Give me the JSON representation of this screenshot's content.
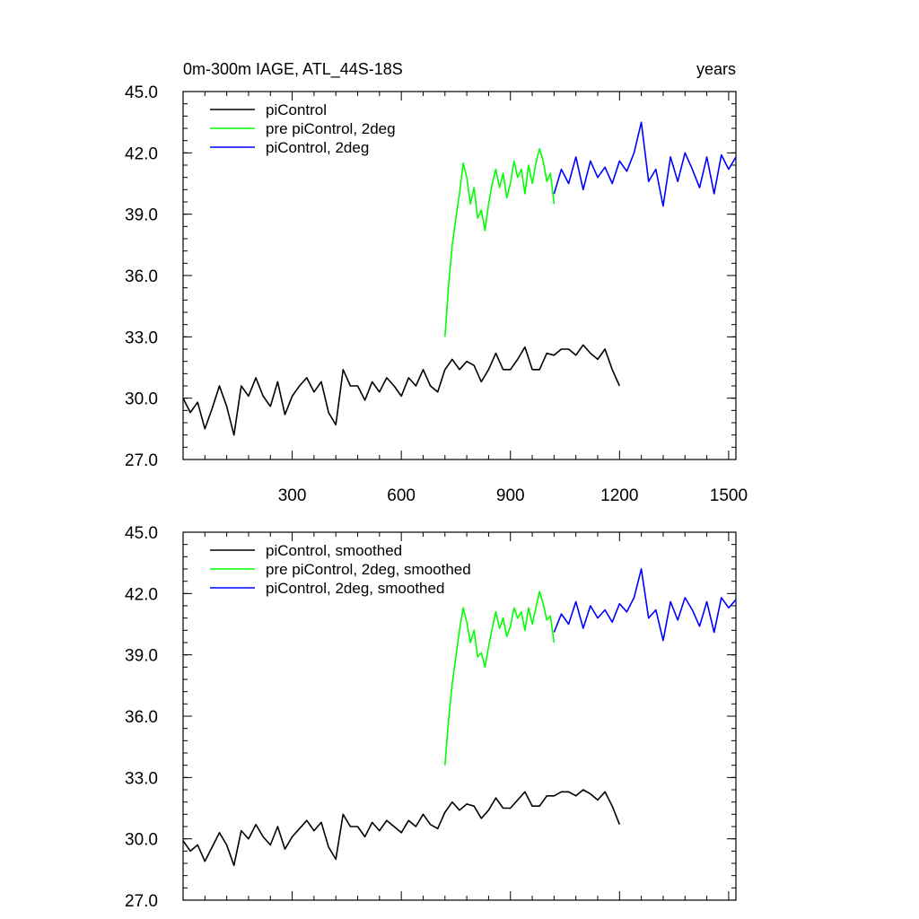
{
  "chart_data": [
    {
      "type": "line",
      "title": "0m-300m IAGE, ATL_44S-18S",
      "subtitle_right": "years",
      "xlabel": "",
      "ylabel": "",
      "xlim": [
        0,
        1520
      ],
      "ylim": [
        27,
        45
      ],
      "x_ticks": [
        "300",
        "600",
        "900",
        "1200",
        "1500"
      ],
      "y_ticks": [
        "27.0",
        "30.0",
        "33.0",
        "36.0",
        "39.0",
        "42.0",
        "45.0"
      ],
      "legend_position": "top-left",
      "series": [
        {
          "name": "piControl",
          "color": "#000000",
          "x": [
            0,
            20,
            40,
            60,
            80,
            100,
            120,
            140,
            160,
            180,
            200,
            220,
            240,
            260,
            280,
            300,
            320,
            340,
            360,
            380,
            400,
            420,
            440,
            460,
            480,
            500,
            520,
            540,
            560,
            580,
            600,
            620,
            640,
            660,
            680,
            700,
            720,
            740,
            760,
            780,
            800,
            820,
            840,
            860,
            880,
            900,
            920,
            940,
            960,
            980,
            1000,
            1020,
            1040,
            1060,
            1080,
            1100,
            1120,
            1140,
            1160,
            1180,
            1200
          ],
          "values": [
            30.0,
            29.3,
            29.8,
            28.5,
            29.5,
            30.6,
            29.6,
            28.2,
            30.6,
            30.1,
            31.0,
            30.1,
            29.6,
            30.8,
            29.2,
            30.1,
            30.6,
            31.0,
            30.3,
            30.8,
            29.3,
            28.7,
            31.4,
            30.6,
            30.6,
            29.9,
            30.8,
            30.3,
            31.0,
            30.6,
            30.1,
            31.0,
            30.6,
            31.4,
            30.6,
            30.3,
            31.4,
            31.9,
            31.4,
            31.8,
            31.6,
            30.8,
            31.4,
            32.2,
            31.4,
            31.4,
            31.9,
            32.5,
            31.4,
            31.4,
            32.2,
            32.1,
            32.4,
            32.4,
            32.1,
            32.6,
            32.2,
            31.9,
            32.4,
            31.4,
            30.6
          ]
        },
        {
          "name": "pre piControl, 2deg",
          "color": "#00ff00",
          "x": [
            720,
            730,
            740,
            750,
            760,
            770,
            780,
            790,
            800,
            810,
            820,
            830,
            840,
            850,
            860,
            870,
            880,
            890,
            900,
            910,
            920,
            930,
            940,
            950,
            960,
            970,
            980,
            990,
            1000,
            1010,
            1020
          ],
          "values": [
            33.0,
            35.5,
            37.5,
            38.8,
            40.0,
            41.5,
            40.8,
            39.5,
            40.3,
            38.8,
            39.2,
            38.2,
            39.5,
            40.5,
            41.2,
            40.3,
            41.0,
            39.8,
            40.5,
            41.6,
            40.8,
            41.2,
            40.0,
            41.4,
            40.5,
            41.5,
            42.2,
            41.6,
            40.6,
            41.0,
            39.5
          ]
        },
        {
          "name": "piControl, 2deg",
          "color": "#0000ff",
          "x": [
            1020,
            1040,
            1060,
            1080,
            1100,
            1120,
            1140,
            1160,
            1180,
            1200,
            1220,
            1240,
            1260,
            1280,
            1300,
            1320,
            1340,
            1360,
            1380,
            1400,
            1420,
            1440,
            1460,
            1480,
            1500,
            1520
          ],
          "values": [
            40.0,
            41.2,
            40.5,
            41.8,
            40.2,
            41.6,
            40.8,
            41.3,
            40.5,
            41.6,
            41.1,
            42.0,
            43.5,
            40.6,
            41.2,
            39.4,
            41.8,
            40.6,
            42.0,
            41.2,
            40.3,
            41.8,
            40.0,
            41.9,
            41.2,
            41.8
          ]
        }
      ]
    },
    {
      "type": "line",
      "title": "",
      "xlabel": "",
      "ylabel": "",
      "xlim": [
        0,
        1520
      ],
      "ylim": [
        27,
        45
      ],
      "y_ticks": [
        "27.0",
        "30.0",
        "33.0",
        "36.0",
        "39.0",
        "42.0",
        "45.0"
      ],
      "legend_position": "top-left",
      "series": [
        {
          "name": "piControl, smoothed",
          "color": "#000000",
          "x": [
            0,
            20,
            40,
            60,
            80,
            100,
            120,
            140,
            160,
            180,
            200,
            220,
            240,
            260,
            280,
            300,
            320,
            340,
            360,
            380,
            400,
            420,
            440,
            460,
            480,
            500,
            520,
            540,
            560,
            580,
            600,
            620,
            640,
            660,
            680,
            700,
            720,
            740,
            760,
            780,
            800,
            820,
            840,
            860,
            880,
            900,
            920,
            940,
            960,
            980,
            1000,
            1020,
            1040,
            1060,
            1080,
            1100,
            1120,
            1140,
            1160,
            1180,
            1200
          ],
          "values": [
            29.9,
            29.4,
            29.7,
            28.9,
            29.6,
            30.3,
            29.7,
            28.7,
            30.4,
            30.0,
            30.7,
            30.1,
            29.7,
            30.6,
            29.5,
            30.1,
            30.5,
            30.9,
            30.4,
            30.8,
            29.6,
            29.0,
            31.2,
            30.6,
            30.6,
            30.1,
            30.8,
            30.4,
            30.9,
            30.6,
            30.3,
            30.9,
            30.6,
            31.2,
            30.7,
            30.5,
            31.3,
            31.8,
            31.4,
            31.7,
            31.6,
            31.0,
            31.4,
            32.0,
            31.5,
            31.5,
            31.9,
            32.3,
            31.6,
            31.6,
            32.1,
            32.1,
            32.3,
            32.3,
            32.1,
            32.4,
            32.2,
            31.9,
            32.3,
            31.6,
            30.7
          ]
        },
        {
          "name": "pre piControl, 2deg, smoothed",
          "color": "#00ff00",
          "x": [
            720,
            730,
            740,
            750,
            760,
            770,
            780,
            790,
            800,
            810,
            820,
            830,
            840,
            850,
            860,
            870,
            880,
            890,
            900,
            910,
            920,
            930,
            940,
            950,
            960,
            970,
            980,
            990,
            1000,
            1010,
            1020
          ],
          "values": [
            33.6,
            35.8,
            37.6,
            38.9,
            40.2,
            41.3,
            40.6,
            39.6,
            40.2,
            38.9,
            39.1,
            38.4,
            39.4,
            40.3,
            41.1,
            40.3,
            40.8,
            39.9,
            40.4,
            41.3,
            40.8,
            41.1,
            40.2,
            41.3,
            40.5,
            41.3,
            42.1,
            41.5,
            40.7,
            40.9,
            39.6
          ]
        },
        {
          "name": "piControl, 2deg, smoothed",
          "color": "#0000ff",
          "x": [
            1020,
            1040,
            1060,
            1080,
            1100,
            1120,
            1140,
            1160,
            1180,
            1200,
            1220,
            1240,
            1260,
            1280,
            1300,
            1320,
            1340,
            1360,
            1380,
            1400,
            1420,
            1440,
            1460,
            1480,
            1500,
            1520
          ],
          "values": [
            40.1,
            41.0,
            40.5,
            41.6,
            40.3,
            41.4,
            40.8,
            41.2,
            40.6,
            41.5,
            41.1,
            41.8,
            43.2,
            40.8,
            41.2,
            39.7,
            41.6,
            40.7,
            41.8,
            41.2,
            40.4,
            41.6,
            40.1,
            41.8,
            41.3,
            41.7
          ]
        }
      ]
    }
  ]
}
